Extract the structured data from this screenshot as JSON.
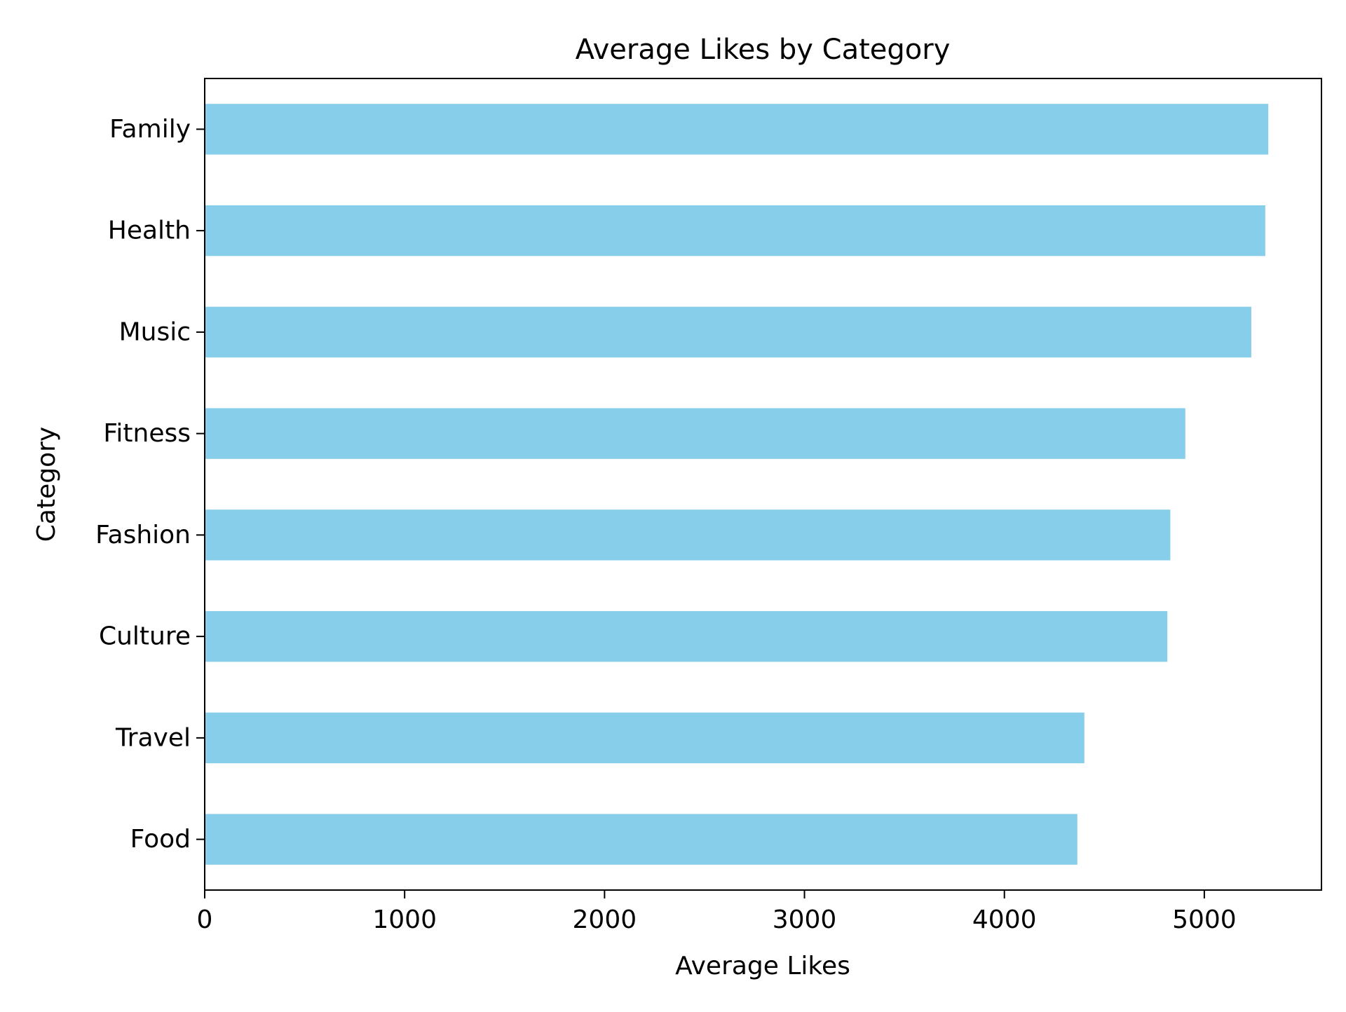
{
  "chart_data": {
    "type": "bar",
    "orientation": "horizontal",
    "title": "Average Likes by Category",
    "xlabel": "Average Likes",
    "ylabel": "Category",
    "categories": [
      "Family",
      "Health",
      "Music",
      "Fitness",
      "Fashion",
      "Culture",
      "Travel",
      "Food"
    ],
    "values": [
      5320,
      5305,
      5235,
      4905,
      4830,
      4815,
      4400,
      4365
    ],
    "xlim": [
      0,
      5586
    ],
    "xticks": [
      0,
      1000,
      2000,
      3000,
      4000,
      5000
    ],
    "xtick_labels": [
      "0",
      "1000",
      "2000",
      "3000",
      "4000",
      "5000"
    ],
    "grid": false,
    "legend": "none",
    "bar_color": "#87ceeb"
  }
}
